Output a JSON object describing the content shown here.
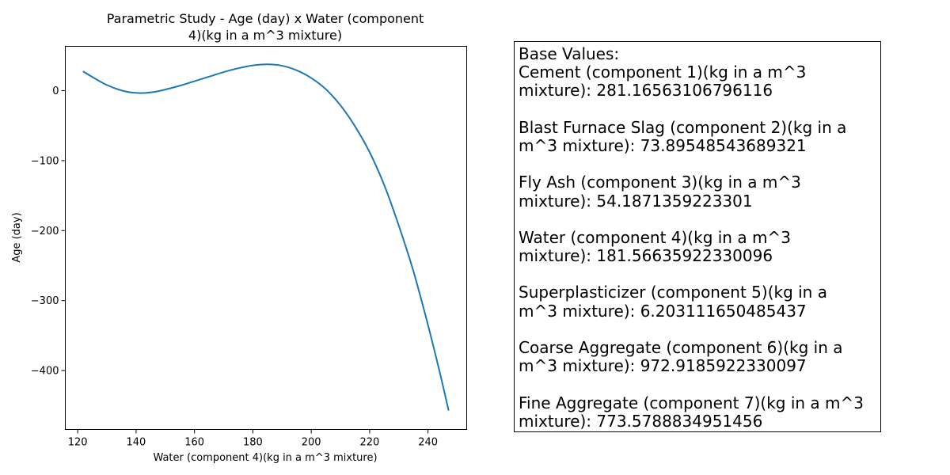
{
  "chart_data": {
    "type": "line",
    "title_lines": [
      "Parametric Study - Age (day) x Water  (component",
      "4)(kg in a m^3 mixture)"
    ],
    "xlabel": "Water  (component 4)(kg in a m^3 mixture)",
    "ylabel": "Age (day)",
    "xlim": [
      115.75,
      253.25
    ],
    "ylim": [
      -484.2,
      63.3
    ],
    "xticks": [
      120,
      140,
      160,
      180,
      200,
      220,
      240
    ],
    "yticks": [
      0,
      -100,
      -200,
      -300,
      -400
    ],
    "x_tick_labels": [
      "120",
      "140",
      "160",
      "180",
      "200",
      "220",
      "240"
    ],
    "y_tick_labels": [
      "0",
      "−100",
      "−200",
      "−300",
      "−400"
    ],
    "grid": false,
    "line_color": "#1f77b4",
    "series": [
      {
        "x": [
          122,
          126,
          130,
          134,
          138,
          142,
          146,
          150,
          155,
          160,
          165,
          170,
          175,
          180,
          185,
          190,
          195,
          200,
          205,
          210,
          215,
          220,
          225,
          230,
          235,
          240,
          244,
          247
        ],
        "values": [
          27,
          17,
          8,
          1.5,
          -2.5,
          -3.5,
          -2,
          1.5,
          7,
          13.5,
          20,
          26.5,
          32,
          36,
          37.5,
          35.5,
          29,
          18,
          2,
          -21,
          -51,
          -88,
          -135,
          -193,
          -258,
          -335,
          -402,
          -456
        ]
      }
    ]
  },
  "info_box": {
    "lines": [
      "Base Values:",
      "Cement (component 1)(kg in a m^3",
      "mixture): 281.16563106796116",
      "",
      "Blast Furnace Slag (component 2)(kg in a",
      "m^3 mixture): 73.89548543689321",
      "",
      "Fly Ash (component 3)(kg in a m^3",
      "mixture): 54.1871359223301",
      "",
      "Water  (component 4)(kg in a m^3",
      "mixture): 181.56635922330096",
      "",
      "Superplasticizer (component 5)(kg in a",
      "m^3 mixture): 6.203111650485437",
      "",
      "Coarse Aggregate  (component 6)(kg in a",
      "m^3 mixture): 972.9185922330097",
      "",
      "Fine Aggregate (component 7)(kg in a m^3",
      "mixture): 773.5788834951456"
    ]
  }
}
